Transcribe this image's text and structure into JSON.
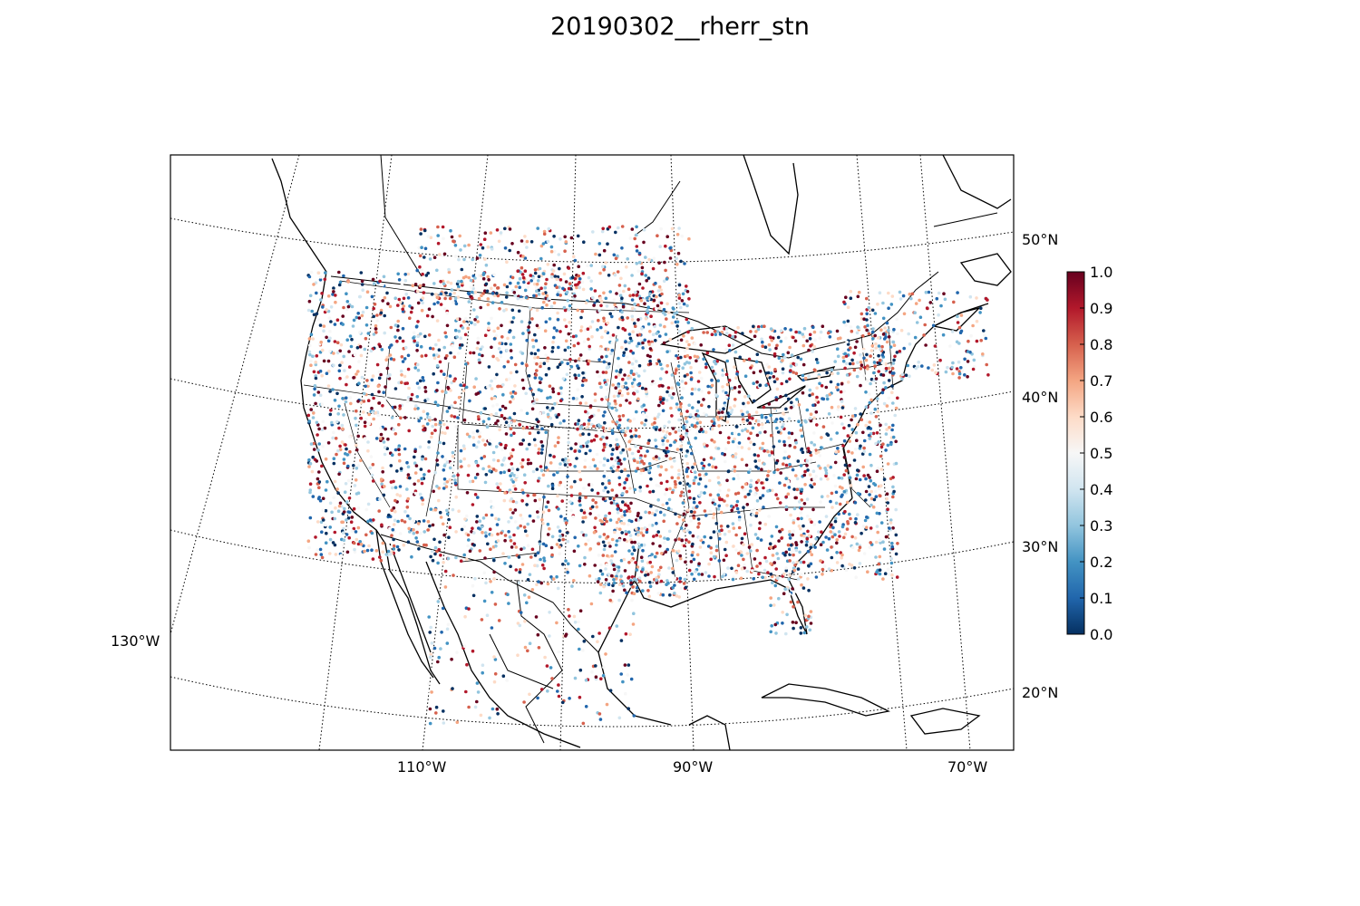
{
  "title": "20190302__rherr_stn",
  "map": {
    "projection": "lambert-conformal",
    "graticule": {
      "latitudes": [
        {
          "value": 20,
          "label": "20°N"
        },
        {
          "value": 30,
          "label": "30°N"
        },
        {
          "value": 40,
          "label": "40°N"
        },
        {
          "value": 50,
          "label": "50°N"
        }
      ],
      "longitudes": [
        {
          "value": -130,
          "label": "130°W"
        },
        {
          "value": -110,
          "label": "110°W"
        },
        {
          "value": -90,
          "label": "90°W"
        },
        {
          "value": -70,
          "label": "70°W"
        }
      ]
    },
    "layers": [
      "coastlines",
      "country-borders",
      "state-borders",
      "station-points"
    ]
  },
  "colorbar": {
    "cmap": "RdBu_r",
    "min": 0.0,
    "max": 1.0,
    "ticks": [
      "0.0",
      "0.1",
      "0.2",
      "0.3",
      "0.4",
      "0.5",
      "0.6",
      "0.7",
      "0.8",
      "0.9",
      "1.0"
    ],
    "colors": [
      "#053061",
      "#2166ac",
      "#4393c3",
      "#92c5de",
      "#d1e5f0",
      "#f7f7f7",
      "#fddbc7",
      "#f4a582",
      "#d6604d",
      "#b2182b",
      "#67001f"
    ]
  }
}
